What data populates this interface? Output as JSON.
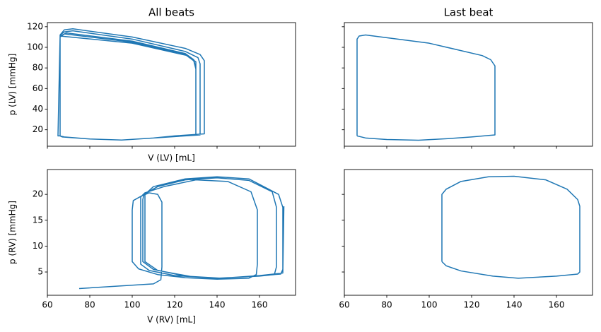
{
  "chart_data": [
    {
      "type": "line",
      "title": "All beats",
      "x_label": "V (LV) [mL]",
      "y_label": "p (LV) [mmHg]",
      "xlim": [
        60,
        177
      ],
      "ylim": [
        4,
        124
      ],
      "xticks": [
        60,
        80,
        100,
        120,
        140,
        160
      ],
      "yticks": [
        20,
        40,
        60,
        80,
        100,
        120
      ],
      "show_xtick_labels": false,
      "show_ytick_labels": true,
      "x": [
        66,
        66,
        68,
        72,
        100,
        125,
        132,
        134,
        134,
        120,
        110,
        95,
        80,
        68,
        66,
        66,
        68,
        72,
        100,
        125,
        131,
        132,
        132,
        110,
        95,
        80,
        68,
        66,
        66,
        69,
        100,
        125,
        129,
        130,
        130,
        110,
        95,
        80,
        68,
        66,
        66,
        68,
        100,
        125,
        129,
        130,
        130,
        110,
        95,
        80,
        67,
        66,
        65,
        66,
        100,
        126,
        130,
        130,
        110,
        95,
        80,
        67
      ],
      "series": [
        {
          "color": "#1f77b4",
          "values": [
            14,
            112,
            117,
            118,
            110,
            99,
            93,
            87,
            16,
            14,
            12,
            10,
            11,
            13,
            14,
            112,
            115,
            116,
            108,
            96,
            90,
            84,
            15,
            12,
            10,
            11,
            13,
            14,
            111,
            114,
            106,
            94,
            88,
            80,
            15,
            12,
            10,
            11,
            13,
            14,
            110,
            113,
            105,
            93,
            87,
            79,
            15,
            12,
            10,
            11,
            13,
            14,
            14,
            111,
            104,
            92,
            86,
            15,
            12,
            10,
            11,
            13
          ]
        }
      ]
    },
    {
      "type": "line",
      "title": "Last beat",
      "xlim": [
        60,
        177
      ],
      "ylim": [
        4,
        124
      ],
      "xticks": [
        60,
        80,
        100,
        120,
        140,
        160
      ],
      "yticks": [
        20,
        40,
        60,
        80,
        100,
        120
      ],
      "show_xtick_labels": false,
      "show_ytick_labels": false,
      "x": [
        66,
        66,
        66,
        67,
        70,
        100,
        125,
        129,
        131,
        131,
        131,
        120,
        110,
        95,
        80,
        70,
        66
      ],
      "series": [
        {
          "color": "#1f77b4",
          "values": [
            14,
            36,
            108,
            111,
            112,
            104,
            92,
            88,
            82,
            75,
            15,
            13,
            11.5,
            9.8,
            10.5,
            12,
            14
          ]
        }
      ]
    },
    {
      "type": "line",
      "x_label": "V (RV) [mL]",
      "y_label": "p (RV) [mmHg]",
      "xlim": [
        60,
        177
      ],
      "ylim": [
        0.5,
        24.8
      ],
      "xticks": [
        60,
        80,
        100,
        120,
        140,
        160
      ],
      "yticks": [
        5,
        10,
        15,
        20
      ],
      "show_xtick_labels": true,
      "show_ytick_labels": true,
      "x": [
        75,
        110,
        113.5,
        114,
        114,
        112,
        108,
        104,
        100.5,
        100,
        100,
        103,
        112,
        125,
        140,
        155,
        158.5,
        159,
        159,
        156,
        145,
        130,
        115,
        106,
        104,
        104,
        108,
        120,
        140,
        160,
        167,
        168,
        168,
        166,
        155,
        140,
        125,
        112,
        105.5,
        105,
        105,
        110,
        125,
        142,
        160,
        170,
        171,
        171,
        169,
        155,
        140,
        125,
        110,
        106,
        106,
        112,
        128,
        142,
        160,
        171,
        171.5
      ],
      "series": [
        {
          "color": "#1f77b4",
          "values": [
            1.8,
            2.7,
            3.5,
            6,
            18.5,
            20,
            20.3,
            19.6,
            18.8,
            17,
            7,
            5.6,
            4.5,
            3.9,
            3.6,
            3.8,
            4.5,
            6.5,
            17,
            20.5,
            22.5,
            22.8,
            21.5,
            20.3,
            19.5,
            6.5,
            5.3,
            4.3,
            3.8,
            4.2,
            4.5,
            6,
            17.5,
            20.5,
            22.7,
            23.2,
            22.8,
            21.5,
            20,
            19,
            7,
            5.5,
            4.2,
            3.8,
            4.3,
            4.6,
            5.5,
            17.5,
            20,
            23,
            23.4,
            23,
            21.5,
            20,
            7,
            5.3,
            4.1,
            3.8,
            4.3,
            4.8,
            17.7
          ]
        }
      ]
    },
    {
      "type": "line",
      "xlim": [
        60,
        177
      ],
      "ylim": [
        0.5,
        24.8
      ],
      "xticks": [
        60,
        80,
        100,
        120,
        140,
        160
      ],
      "yticks": [
        5,
        10,
        15,
        20
      ],
      "show_xtick_labels": true,
      "show_ytick_labels": false,
      "x": [
        106,
        106,
        108,
        115,
        128,
        140,
        155,
        165,
        170,
        171,
        171,
        170,
        160,
        142,
        130,
        115,
        108,
        106
      ],
      "series": [
        {
          "color": "#1f77b4",
          "values": [
            7,
            20,
            21,
            22.5,
            23.4,
            23.5,
            22.8,
            21,
            19,
            17.7,
            5,
            4.6,
            4.2,
            3.8,
            4.2,
            5.2,
            6.2,
            7
          ]
        }
      ]
    }
  ]
}
